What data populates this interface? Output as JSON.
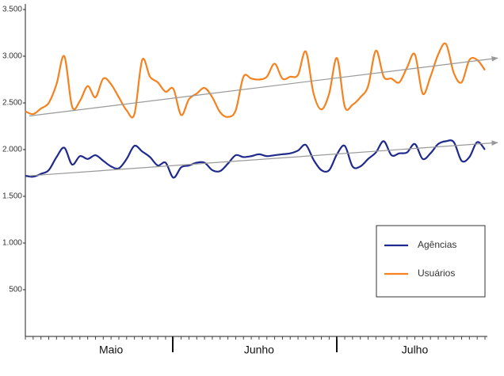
{
  "chart_data": {
    "type": "line",
    "categories": [
      null,
      null,
      null,
      null,
      null,
      null,
      null,
      null,
      null,
      null,
      null,
      "Maio",
      null,
      null,
      null,
      null,
      null,
      null,
      null,
      null,
      null,
      null,
      null,
      null,
      null,
      null,
      null,
      null,
      null,
      null,
      "Junho",
      null,
      null,
      null,
      null,
      null,
      null,
      null,
      null,
      null,
      null,
      null,
      null,
      null,
      null,
      null,
      null,
      null,
      null,
      null,
      "Julho",
      null,
      null,
      null,
      null,
      null,
      null,
      null,
      null,
      null
    ],
    "ylim": [
      0,
      3500
    ],
    "yticks": [
      500,
      {
        "value": 1000,
        "label": "1.000"
      },
      {
        "value": 1500,
        "label": "1.500"
      },
      {
        "value": 2000,
        "label": "2.000"
      },
      {
        "value": 2500,
        "label": "2.500"
      },
      {
        "value": 3000,
        "label": "3.000"
      },
      {
        "value": 3500,
        "label": "3.500"
      }
    ],
    "legend": "lower-right",
    "trend_color": "#999999",
    "series": [
      {
        "name": "Agências",
        "color": "#1f2a8c",
        "trend": [
          1720,
          2075
        ],
        "values": [
          1720,
          1710,
          1740,
          1780,
          1920,
          2020,
          1840,
          1930,
          1900,
          1940,
          1880,
          1820,
          1800,
          1900,
          2040,
          1980,
          1920,
          1830,
          1860,
          1700,
          1810,
          1830,
          1860,
          1860,
          1780,
          1770,
          1850,
          1940,
          1920,
          1930,
          1950,
          1930,
          1940,
          1950,
          1960,
          1990,
          2050,
          1890,
          1780,
          1780,
          1950,
          2040,
          1820,
          1820,
          1900,
          1970,
          2090,
          1940,
          1960,
          1970,
          2060,
          1900,
          1960,
          2060,
          2090,
          2080,
          1880,
          1920,
          2080,
          2000
        ]
      },
      {
        "name": "Usuários",
        "color": "#f5821f",
        "trend": [
          2360,
          2980
        ],
        "values": [
          2410,
          2380,
          2440,
          2500,
          2700,
          3000,
          2460,
          2520,
          2680,
          2560,
          2760,
          2700,
          2560,
          2420,
          2380,
          2960,
          2780,
          2720,
          2620,
          2650,
          2370,
          2540,
          2600,
          2660,
          2560,
          2400,
          2350,
          2420,
          2780,
          2760,
          2750,
          2780,
          2920,
          2760,
          2780,
          2800,
          3050,
          2600,
          2430,
          2600,
          2980,
          2460,
          2480,
          2560,
          2680,
          3060,
          2780,
          2760,
          2720,
          2880,
          3020,
          2600,
          2780,
          3020,
          3130,
          2820,
          2720,
          2960,
          2960,
          2850
        ]
      }
    ]
  }
}
